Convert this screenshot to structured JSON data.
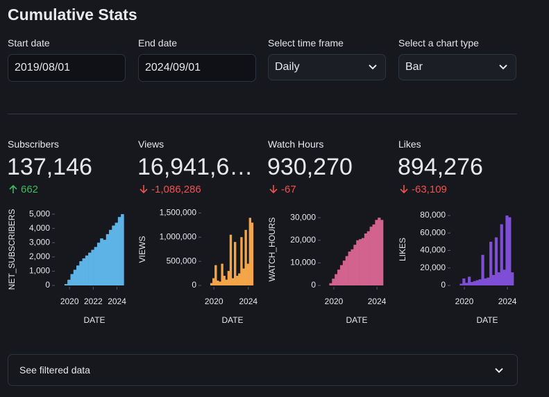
{
  "header": {
    "title": "Cumulative Stats"
  },
  "filters": [
    {
      "label": "Start date",
      "value": "2019/08/01"
    },
    {
      "label": "End date",
      "value": "2024/09/01"
    },
    {
      "label": "Select time frame",
      "value": "Daily"
    },
    {
      "label": "Select a chart type",
      "value": "Bar"
    }
  ],
  "metrics": [
    {
      "label": "Subscribers",
      "value": "137,146",
      "delta": "662"
    },
    {
      "label": "Views",
      "value": "16,941,6…",
      "delta": "-1,086,286"
    },
    {
      "label": "Watch Hours",
      "value": "930,270",
      "delta": "-67"
    },
    {
      "label": "Likes",
      "value": "894,276",
      "delta": "-63,109"
    }
  ],
  "charts": [
    {
      "type": "bar",
      "ylabel": "NET_SUBSCRIBERS",
      "xlabel": "DATE",
      "color": "#5db3e6",
      "x": [
        2019.7,
        2019.95,
        2020.2,
        2020.45,
        2020.7,
        2020.95,
        2021.2,
        2021.45,
        2021.7,
        2021.95,
        2022.2,
        2022.45,
        2022.7,
        2022.95,
        2023.2,
        2023.45,
        2023.7,
        2023.95,
        2024.2,
        2024.45
      ],
      "values": [
        100,
        400,
        800,
        1100,
        1400,
        1700,
        1900,
        2100,
        2300,
        2500,
        2700,
        3000,
        3300,
        3200,
        3600,
        3900,
        4200,
        4400,
        4800,
        5000
      ],
      "xlim": [
        2019.58,
        2024.67
      ],
      "ylim": [
        0,
        5150
      ],
      "xticks": [
        2020,
        2022,
        2024
      ],
      "yticks": [
        0,
        {
          "value": 1000,
          "label": "1,000"
        },
        {
          "value": 2000,
          "label": "2,000"
        },
        {
          "value": 3000,
          "label": "3,000"
        },
        {
          "value": 4000,
          "label": "4,000"
        },
        {
          "value": 5000,
          "label": "5,000"
        }
      ]
    },
    {
      "type": "bar",
      "ylabel": "VIEWS",
      "xlabel": "DATE",
      "color": "#f4a548",
      "x": [
        2019.7,
        2019.95,
        2020.2,
        2020.45,
        2020.7,
        2020.95,
        2021.2,
        2021.45,
        2021.7,
        2021.95,
        2022.2,
        2022.45,
        2022.7,
        2022.95,
        2023.2,
        2023.45,
        2023.7,
        2023.95,
        2024.2,
        2024.45
      ],
      "values": [
        50000,
        150000,
        420000,
        100000,
        80000,
        450000,
        200000,
        120000,
        300000,
        1050000,
        150000,
        900000,
        200000,
        250000,
        1000000,
        350000,
        1150000,
        450000,
        1400000,
        1300000
      ],
      "xlim": [
        2019.58,
        2024.67
      ],
      "ylim": [
        0,
        1520000
      ],
      "xticks": [
        2020,
        2024
      ],
      "yticks": [
        0,
        {
          "value": 500000,
          "label": "500,000"
        },
        {
          "value": 1000000,
          "label": "1,000,000"
        },
        {
          "value": 1500000,
          "label": "1,500,000"
        }
      ]
    },
    {
      "type": "bar",
      "ylabel": "WATCH_HOURS",
      "xlabel": "DATE",
      "color": "#d2628e",
      "x": [
        2019.7,
        2019.95,
        2020.2,
        2020.45,
        2020.7,
        2020.95,
        2021.2,
        2021.45,
        2021.7,
        2021.95,
        2022.2,
        2022.45,
        2022.7,
        2022.95,
        2023.2,
        2023.45,
        2023.7,
        2023.95,
        2024.2,
        2024.45
      ],
      "values": [
        1000,
        3000,
        5000,
        7000,
        9000,
        11000,
        13000,
        15000,
        16000,
        18000,
        20000,
        20500,
        21000,
        23000,
        24000,
        26000,
        27000,
        29000,
        30000,
        29000
      ],
      "xlim": [
        2019.58,
        2024.67
      ],
      "ylim": [
        0,
        32500
      ],
      "xticks": [
        2020,
        2024
      ],
      "yticks": [
        0,
        {
          "value": 10000,
          "label": "10,000"
        },
        {
          "value": 20000,
          "label": "20,000"
        },
        {
          "value": 30000,
          "label": "30,000"
        }
      ]
    },
    {
      "type": "bar",
      "ylabel": "LIKES",
      "xlabel": "DATE",
      "color": "#7e4fd6",
      "x": [
        2019.7,
        2019.95,
        2020.2,
        2020.45,
        2020.7,
        2020.95,
        2021.2,
        2021.45,
        2021.7,
        2021.95,
        2022.2,
        2022.45,
        2022.7,
        2022.95,
        2023.2,
        2023.45,
        2023.7,
        2023.95,
        2024.2,
        2024.45
      ],
      "values": [
        2000,
        8000,
        3000,
        10000,
        4000,
        5000,
        6000,
        7000,
        35000,
        8000,
        9000,
        50000,
        12000,
        55000,
        15000,
        70000,
        18000,
        80000,
        78000,
        15000
      ],
      "xlim": [
        2019.58,
        2024.67
      ],
      "ylim": [
        0,
        84000
      ],
      "xticks": [
        2020,
        2024
      ],
      "yticks": [
        0,
        {
          "value": 20000,
          "label": "20,000"
        },
        {
          "value": 40000,
          "label": "40,000"
        },
        {
          "value": 60000,
          "label": "60,000"
        },
        {
          "value": 80000,
          "label": "80,000"
        }
      ]
    }
  ],
  "expander": {
    "label": "See filtered data"
  }
}
